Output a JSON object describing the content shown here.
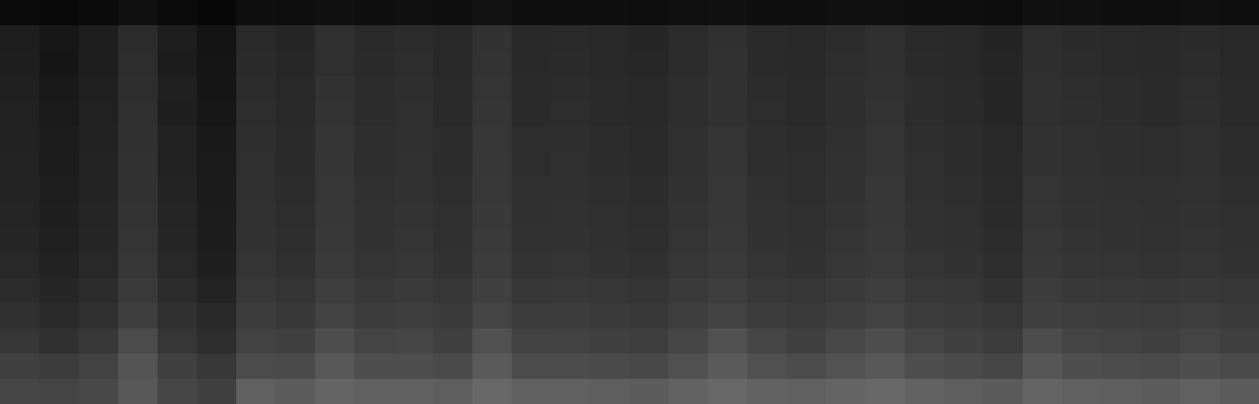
{
  "chart_data": {
    "type": "heatmap",
    "tick_labels": false,
    "color": "#ffffff",
    "cells": [
      [
        11,
        9,
        11,
        16,
        11,
        8,
        15,
        14,
        17,
        15,
        16,
        15,
        18,
        15,
        15,
        15,
        14,
        16,
        17,
        15,
        15,
        16,
        17,
        15,
        15,
        13,
        17,
        16,
        15,
        15,
        16,
        15
      ],
      [
        30,
        23,
        30,
        44,
        30,
        20,
        42,
        38,
        48,
        42,
        44,
        40,
        50,
        41,
        42,
        40,
        38,
        44,
        48,
        42,
        40,
        44,
        48,
        42,
        40,
        36,
        46,
        43,
        42,
        41,
        43,
        40
      ],
      [
        31,
        22,
        30,
        45,
        29,
        21,
        43,
        39,
        47,
        43,
        45,
        40,
        51,
        41,
        43,
        40,
        39,
        44,
        49,
        42,
        41,
        45,
        48,
        43,
        40,
        37,
        46,
        44,
        42,
        41,
        44,
        40
      ],
      [
        32,
        25,
        32,
        46,
        32,
        22,
        44,
        40,
        50,
        44,
        46,
        42,
        52,
        43,
        44,
        42,
        40,
        46,
        50,
        44,
        42,
        46,
        50,
        44,
        42,
        38,
        48,
        45,
        44,
        43,
        45,
        42
      ],
      [
        33,
        26,
        33,
        47,
        31,
        23,
        45,
        41,
        51,
        44,
        47,
        42,
        53,
        43,
        45,
        42,
        41,
        46,
        50,
        45,
        42,
        46,
        51,
        44,
        43,
        38,
        48,
        46,
        44,
        43,
        46,
        42
      ],
      [
        34,
        28,
        34,
        48,
        34,
        25,
        46,
        42,
        52,
        46,
        48,
        44,
        54,
        45,
        46,
        44,
        42,
        48,
        52,
        46,
        44,
        48,
        52,
        46,
        44,
        40,
        50,
        47,
        46,
        45,
        47,
        44
      ],
      [
        35,
        28,
        35,
        49,
        33,
        26,
        47,
        43,
        53,
        46,
        49,
        44,
        55,
        45,
        47,
        44,
        43,
        48,
        53,
        46,
        45,
        49,
        52,
        47,
        44,
        41,
        50,
        48,
        46,
        45,
        48,
        44
      ],
      [
        36,
        30,
        36,
        50,
        36,
        27,
        48,
        44,
        54,
        48,
        50,
        46,
        56,
        47,
        48,
        46,
        44,
        50,
        54,
        48,
        46,
        50,
        54,
        48,
        46,
        42,
        52,
        49,
        48,
        47,
        49,
        46
      ],
      [
        37,
        31,
        37,
        51,
        37,
        28,
        49,
        45,
        55,
        49,
        51,
        47,
        57,
        48,
        49,
        47,
        45,
        51,
        55,
        49,
        47,
        51,
        55,
        49,
        47,
        43,
        53,
        50,
        49,
        48,
        50,
        47
      ],
      [
        38,
        32,
        38,
        52,
        38,
        29,
        50,
        46,
        56,
        50,
        52,
        48,
        58,
        49,
        50,
        48,
        46,
        52,
        56,
        50,
        48,
        52,
        56,
        50,
        48,
        44,
        54,
        51,
        50,
        49,
        51,
        48
      ],
      [
        40,
        34,
        40,
        54,
        40,
        31,
        52,
        48,
        58,
        52,
        54,
        50,
        60,
        51,
        52,
        50,
        48,
        54,
        58,
        52,
        50,
        54,
        58,
        52,
        50,
        46,
        56,
        53,
        52,
        51,
        53,
        50
      ],
      [
        44,
        38,
        44,
        58,
        44,
        35,
        56,
        52,
        62,
        56,
        58,
        54,
        64,
        55,
        56,
        54,
        52,
        58,
        62,
        56,
        54,
        58,
        62,
        56,
        54,
        50,
        60,
        57,
        56,
        55,
        57,
        54
      ],
      [
        48,
        42,
        48,
        62,
        48,
        40,
        60,
        56,
        66,
        60,
        62,
        58,
        68,
        59,
        60,
        58,
        56,
        62,
        66,
        60,
        58,
        62,
        66,
        60,
        58,
        54,
        64,
        61,
        60,
        59,
        61,
        58
      ],
      [
        54,
        48,
        56,
        75,
        54,
        45,
        66,
        64,
        78,
        68,
        70,
        64,
        80,
        66,
        66,
        64,
        62,
        70,
        80,
        70,
        64,
        72,
        78,
        68,
        64,
        60,
        76,
        68,
        66,
        64,
        68,
        64
      ],
      [
        64,
        60,
        66,
        84,
        64,
        56,
        76,
        74,
        88,
        78,
        78,
        74,
        90,
        76,
        76,
        74,
        72,
        80,
        90,
        80,
        76,
        82,
        88,
        78,
        74,
        70,
        86,
        78,
        76,
        74,
        78,
        74
      ],
      [
        70,
        68,
        72,
        88,
        70,
        64,
        96,
        92,
        100,
        96,
        96,
        94,
        104,
        96,
        96,
        94,
        92,
        98,
        104,
        98,
        96,
        100,
        104,
        98,
        94,
        90,
        100,
        96,
        94,
        92,
        96,
        92
      ]
    ]
  }
}
